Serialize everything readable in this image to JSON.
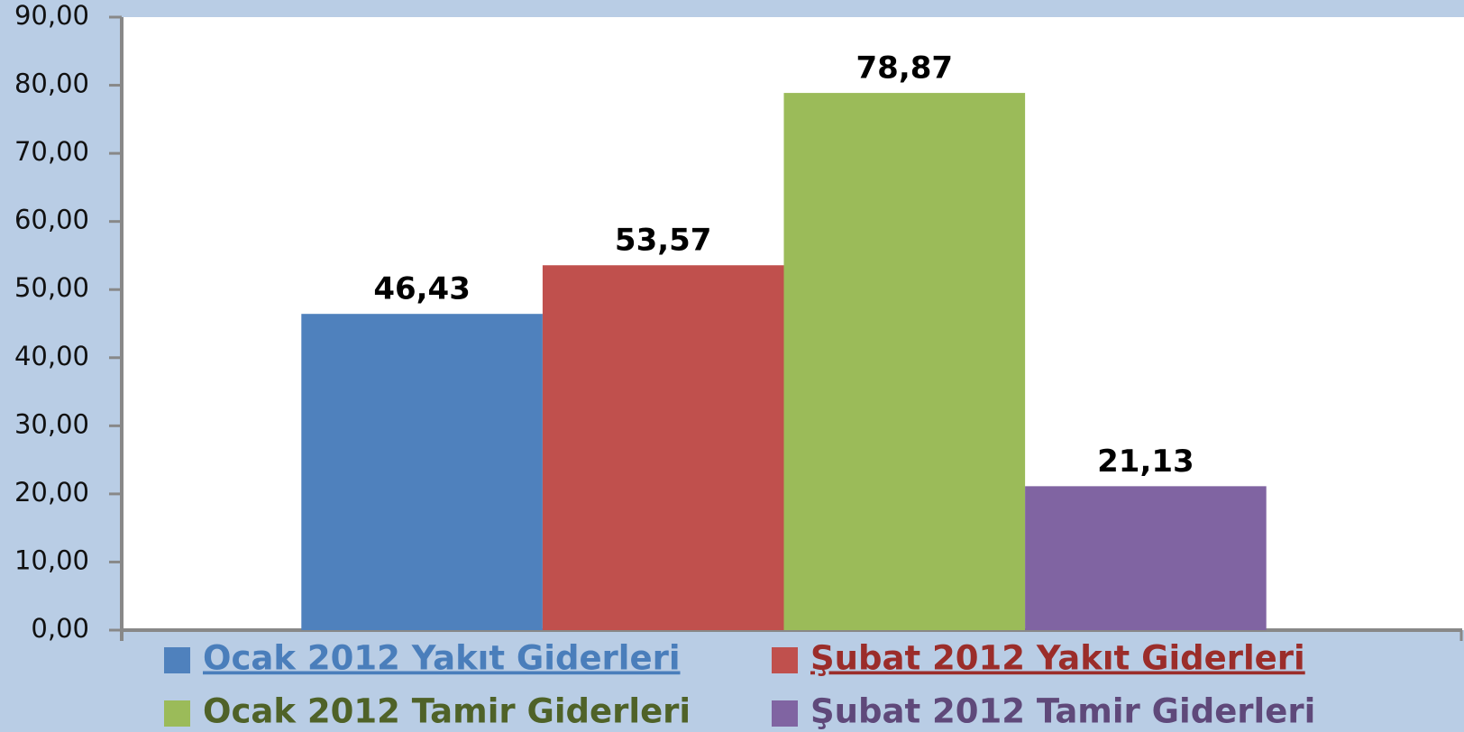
{
  "chart_data": {
    "type": "bar",
    "categories": [
      null
    ],
    "series": [
      {
        "name": "Ocak 2012 Yakıt Giderleri",
        "color": "#4f81bd",
        "values": [
          46.43
        ],
        "value_labels": [
          "46,43"
        ]
      },
      {
        "name": "Şubat 2012 Yakıt Giderleri",
        "color": "#c0504d",
        "values": [
          53.57
        ],
        "value_labels": [
          "53,57"
        ]
      },
      {
        "name": "Ocak 2012 Tamir Giderleri",
        "color": "#9bbb59",
        "values": [
          78.87
        ],
        "value_labels": [
          "78,87"
        ]
      },
      {
        "name": "Şubat 2012 Tamir Giderleri",
        "color": "#8064a2",
        "values": [
          21.13
        ],
        "value_labels": [
          "21,13"
        ]
      }
    ],
    "ylim": [
      0,
      90
    ],
    "yticks": [
      {
        "value": 0,
        "label": "0,00"
      },
      {
        "value": 10,
        "label": "10,00"
      },
      {
        "value": 20,
        "label": "20,00"
      },
      {
        "value": 30,
        "label": "30,00"
      },
      {
        "value": 40,
        "label": "40,00"
      },
      {
        "value": 50,
        "label": "50,00"
      },
      {
        "value": 60,
        "label": "60,00"
      },
      {
        "value": 70,
        "label": "70,00"
      },
      {
        "value": 80,
        "label": "80,00"
      },
      {
        "value": 90,
        "label": "90,00"
      }
    ],
    "legend": "bottom"
  }
}
